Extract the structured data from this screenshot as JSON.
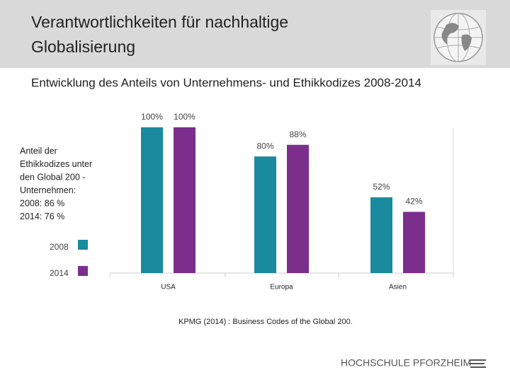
{
  "header": {
    "title_lines": [
      "Verantwortlichkeiten für nachhaltige",
      "Globalisierung"
    ]
  },
  "subtitle": "Entwicklung des Anteils von Unternehmens- und Ethikkodizes 2008-2014",
  "note_lines": [
    "Anteil der",
    "Ethikkodizes unter",
    "den Global 200 -",
    "Unternehmen:",
    "2008: 86 %",
    "2014: 76 %"
  ],
  "source": "KPMG (2014) : Business Codes of the Global 200.",
  "footer": "HOCHSCHULE PFORZHEIM",
  "chart_data": {
    "type": "bar",
    "categories": [
      "USA",
      "Europa",
      "Asien"
    ],
    "series": [
      {
        "name": "2008",
        "color": "#1a8a9e",
        "values": [
          100,
          80,
          52
        ],
        "value_labels": [
          "100%",
          "80%",
          "52%"
        ]
      },
      {
        "name": "2014",
        "color": "#7b2e8c",
        "values": [
          100,
          88,
          42
        ],
        "value_labels": [
          "100%",
          "88%",
          "42%"
        ]
      }
    ],
    "ylim": [
      0,
      100
    ]
  }
}
